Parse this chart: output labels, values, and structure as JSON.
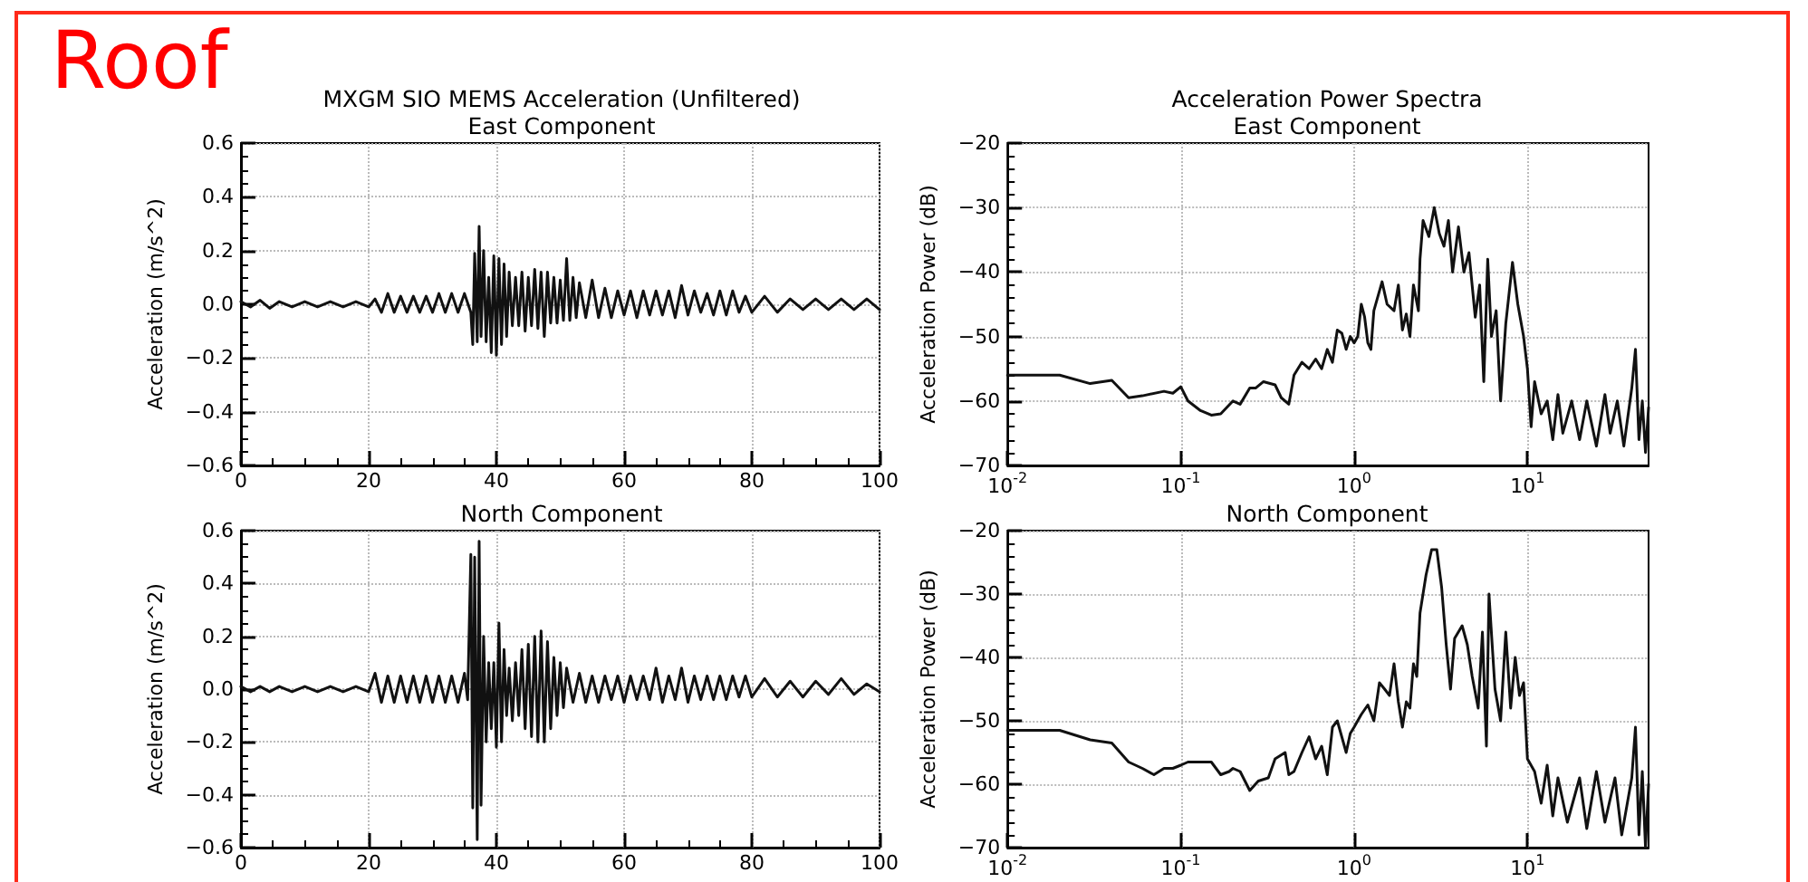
{
  "chart_data": [
    {
      "type": "line",
      "title": "MXGM SIO MEMS Acceleration (Unfiltered)",
      "subtitle": "East Component",
      "ylabel": "Acceleration (m/s^2)",
      "annotations": [
        "Roof"
      ],
      "grid": true,
      "line_style": "solid",
      "marker": "none",
      "x": [
        0,
        1.5,
        3,
        4.5,
        6,
        8,
        10,
        12,
        14,
        16,
        18,
        20,
        21,
        22,
        23,
        24,
        25,
        26,
        27,
        28,
        29,
        30,
        31,
        32,
        33,
        34,
        35,
        36,
        36.3,
        36.6,
        37,
        37.3,
        37.6,
        38,
        38.4,
        38.8,
        39.2,
        39.6,
        40,
        40.4,
        40.8,
        41.2,
        41.6,
        42,
        42.5,
        43,
        43.5,
        44,
        44.5,
        45,
        45.5,
        46,
        46.5,
        47,
        47.5,
        48,
        48.5,
        49,
        49.5,
        50,
        50.5,
        51,
        51.5,
        52,
        52.5,
        53,
        54,
        55,
        56,
        57,
        58,
        59,
        60,
        61,
        62,
        63,
        64,
        65,
        66,
        67,
        68,
        69,
        70,
        71,
        72,
        73,
        74,
        75,
        76,
        77,
        78,
        79,
        80,
        82,
        84,
        86,
        88,
        90,
        92,
        94,
        96,
        98,
        100
      ],
      "series": [
        {
          "color": "#111111",
          "values": [
            0.01,
            -0.01,
            0.015,
            -0.015,
            0.01,
            -0.01,
            0.01,
            -0.01,
            0.01,
            -0.01,
            0.01,
            -0.01,
            0.02,
            -0.03,
            0.04,
            -0.03,
            0.03,
            -0.03,
            0.03,
            -0.03,
            0.03,
            -0.03,
            0.04,
            -0.03,
            0.04,
            -0.03,
            0.04,
            -0.03,
            -0.15,
            0.19,
            -0.14,
            0.29,
            -0.12,
            0.2,
            -0.14,
            0.1,
            -0.18,
            0.18,
            -0.19,
            0.17,
            -0.15,
            0.15,
            -0.12,
            0.12,
            -0.08,
            0.1,
            -0.08,
            0.12,
            -0.1,
            0.1,
            -0.08,
            0.13,
            -0.09,
            0.12,
            -0.12,
            0.12,
            -0.07,
            0.1,
            -0.07,
            0.09,
            -0.06,
            0.17,
            -0.06,
            0.1,
            -0.05,
            0.08,
            -0.05,
            0.09,
            -0.05,
            0.06,
            -0.05,
            0.05,
            -0.04,
            0.05,
            -0.05,
            0.05,
            -0.04,
            0.05,
            -0.04,
            0.05,
            -0.05,
            0.07,
            -0.04,
            0.05,
            -0.03,
            0.04,
            -0.04,
            0.05,
            -0.04,
            0.05,
            -0.03,
            0.03,
            -0.03,
            0.03,
            -0.03,
            0.02,
            -0.02,
            0.02,
            -0.02,
            0.02,
            -0.02,
            0.02,
            -0.02
          ]
        }
      ],
      "xlim": [
        0,
        100
      ],
      "xticks": [
        0,
        20,
        40,
        60,
        80,
        100
      ],
      "ylim": [
        -0.6,
        0.6
      ],
      "yticks": [
        {
          "value": -0.6,
          "label": "−0.6"
        },
        {
          "value": -0.4,
          "label": "−0.4"
        },
        {
          "value": -0.2,
          "label": "−0.2"
        },
        {
          "value": 0,
          "label": "0.0"
        },
        {
          "value": 0.2,
          "label": "0.2"
        },
        {
          "value": 0.4,
          "label": "0.4"
        },
        {
          "value": 0.6,
          "label": "0.6"
        }
      ]
    },
    {
      "type": "line",
      "title": "Acceleration Power Spectra",
      "subtitle": "East Component",
      "ylabel": "Acceleration Power (dB)",
      "grid": true,
      "line_style": "solid",
      "marker": "none",
      "log": "x",
      "x": [
        0.01,
        0.02,
        0.03,
        0.04,
        0.05,
        0.06,
        0.08,
        0.09,
        0.1,
        0.11,
        0.13,
        0.15,
        0.17,
        0.2,
        0.22,
        0.25,
        0.27,
        0.3,
        0.35,
        0.38,
        0.42,
        0.45,
        0.5,
        0.55,
        0.6,
        0.65,
        0.7,
        0.75,
        0.8,
        0.85,
        0.9,
        0.95,
        1.0,
        1.05,
        1.1,
        1.15,
        1.2,
        1.25,
        1.3,
        1.45,
        1.55,
        1.7,
        1.8,
        1.9,
        2.0,
        2.1,
        2.2,
        2.35,
        2.4,
        2.5,
        2.7,
        2.9,
        3.1,
        3.3,
        3.5,
        3.7,
        4.0,
        4.3,
        4.6,
        5.0,
        5.3,
        5.6,
        5.9,
        6.2,
        6.6,
        7,
        7.5,
        8.2,
        8.8,
        9.5,
        10,
        10.5,
        11,
        12,
        13,
        14,
        15,
        16,
        18,
        20,
        22,
        25,
        28,
        30,
        33,
        36,
        40,
        42,
        44,
        46,
        48,
        50
      ],
      "series": [
        {
          "color": "#111111",
          "values": [
            -56,
            -56,
            -57.3,
            -56.8,
            -59.5,
            -59.2,
            -58.5,
            -58.8,
            -57.8,
            -60,
            -61.5,
            -62.2,
            -62,
            -60,
            -60.5,
            -58,
            -58,
            -57,
            -57.5,
            -59.5,
            -60.5,
            -56,
            -54,
            -55,
            -53.5,
            -55,
            -52,
            -54,
            -49,
            -49.5,
            -52,
            -50,
            -51,
            -50,
            -45,
            -47,
            -51,
            -52,
            -46,
            -41.5,
            -45,
            -46,
            -42,
            -49,
            -46.5,
            -50,
            -42,
            -46,
            -38,
            -32,
            -34.5,
            -30,
            -34,
            -36,
            -32,
            -40,
            -33,
            -40,
            -37,
            -47,
            -42,
            -57,
            -38,
            -50,
            -46,
            -60,
            -48,
            -38.5,
            -45,
            -50,
            -55,
            -64,
            -57,
            -62,
            -60,
            -66,
            -59,
            -65,
            -60,
            -66,
            -60,
            -67,
            -59,
            -65,
            -60,
            -67,
            -58,
            -52,
            -66,
            -60,
            -68,
            -61
          ]
        }
      ],
      "xlim": [
        0.01,
        50
      ],
      "xticks": [
        {
          "value": 0.01,
          "label": "10$^{-2}$"
        },
        {
          "value": 0.1,
          "label": "10$^{-1}$"
        },
        {
          "value": 1,
          "label": "10$^{0}$"
        },
        {
          "value": 10,
          "label": "10$^{1}$"
        }
      ],
      "ylim": [
        -70,
        -20
      ],
      "yticks": [
        {
          "value": -70,
          "label": "−70"
        },
        {
          "value": -60,
          "label": "−60"
        },
        {
          "value": -50,
          "label": "−50"
        },
        {
          "value": -40,
          "label": "−40"
        },
        {
          "value": -30,
          "label": "−30"
        },
        {
          "value": -20,
          "label": "−20"
        }
      ]
    },
    {
      "type": "line",
      "title": "North Component",
      "ylabel": "Acceleration (m/s^2)",
      "grid": true,
      "line_style": "solid",
      "marker": "none",
      "x": [
        0,
        1.5,
        3,
        4.5,
        6,
        8,
        10,
        12,
        14,
        16,
        18,
        20,
        21,
        22,
        23,
        24,
        25,
        26,
        27,
        28,
        29,
        30,
        31,
        32,
        33,
        34,
        35,
        35.5,
        36,
        36.3,
        36.6,
        37,
        37.3,
        37.6,
        38,
        38.4,
        38.8,
        39.2,
        39.6,
        40,
        40.4,
        40.8,
        41.2,
        41.6,
        42,
        42.5,
        43,
        43.5,
        44,
        44.5,
        45,
        45.5,
        46,
        46.5,
        47,
        47.5,
        48,
        48.5,
        49,
        49.5,
        50,
        50.5,
        51,
        52,
        53,
        54,
        55,
        56,
        57,
        58,
        59,
        60,
        61,
        62,
        63,
        64,
        65,
        66,
        67,
        68,
        69,
        70,
        71,
        72,
        73,
        74,
        75,
        76,
        77,
        78,
        79,
        80,
        82,
        84,
        86,
        88,
        90,
        92,
        94,
        96,
        98,
        100
      ],
      "series": [
        {
          "color": "#111111",
          "values": [
            0.01,
            -0.01,
            0.01,
            -0.01,
            0.01,
            -0.01,
            0.01,
            -0.01,
            0.01,
            -0.01,
            0.01,
            -0.01,
            0.06,
            -0.05,
            0.05,
            -0.05,
            0.05,
            -0.05,
            0.05,
            -0.05,
            0.05,
            -0.05,
            0.05,
            -0.05,
            0.05,
            -0.05,
            0.06,
            -0.04,
            0.51,
            -0.45,
            0.5,
            -0.57,
            0.56,
            -0.44,
            0.2,
            -0.2,
            0.1,
            -0.15,
            0.1,
            -0.22,
            0.25,
            -0.2,
            0.15,
            -0.1,
            0.08,
            -0.12,
            0.1,
            -0.1,
            0.15,
            -0.15,
            0.17,
            -0.18,
            0.2,
            -0.2,
            0.22,
            -0.2,
            0.18,
            -0.15,
            0.12,
            -0.1,
            0.1,
            -0.07,
            0.08,
            -0.05,
            0.06,
            -0.05,
            0.05,
            -0.05,
            0.05,
            -0.04,
            0.05,
            -0.05,
            0.05,
            -0.04,
            0.05,
            -0.04,
            0.08,
            -0.05,
            0.05,
            -0.04,
            0.08,
            -0.05,
            0.05,
            -0.04,
            0.05,
            -0.04,
            0.05,
            -0.04,
            0.05,
            -0.03,
            0.05,
            -0.03,
            0.04,
            -0.03,
            0.03,
            -0.03,
            0.03,
            -0.02,
            0.04,
            -0.02,
            0.02,
            -0.01
          ]
        }
      ],
      "xlim": [
        0,
        100
      ],
      "xticks": [
        0,
        20,
        40,
        60,
        80,
        100
      ],
      "ylim": [
        -0.6,
        0.6
      ],
      "yticks": [
        {
          "value": -0.6,
          "label": "−0.6"
        },
        {
          "value": -0.4,
          "label": "−0.4"
        },
        {
          "value": -0.2,
          "label": "−0.2"
        },
        {
          "value": 0,
          "label": "0.0"
        },
        {
          "value": 0.2,
          "label": "0.2"
        },
        {
          "value": 0.4,
          "label": "0.4"
        },
        {
          "value": 0.6,
          "label": "0.6"
        }
      ]
    },
    {
      "type": "line",
      "title": "North Component",
      "ylabel": "Acceleration Power (dB)",
      "grid": true,
      "line_style": "solid",
      "marker": "none",
      "log": "x",
      "x": [
        0.01,
        0.02,
        0.03,
        0.04,
        0.05,
        0.06,
        0.07,
        0.08,
        0.09,
        0.1,
        0.11,
        0.13,
        0.15,
        0.17,
        0.19,
        0.2,
        0.22,
        0.25,
        0.28,
        0.32,
        0.35,
        0.4,
        0.42,
        0.45,
        0.5,
        0.55,
        0.6,
        0.65,
        0.7,
        0.75,
        0.8,
        0.9,
        0.95,
        1.0,
        1.1,
        1.2,
        1.3,
        1.4,
        1.5,
        1.6,
        1.7,
        1.8,
        1.9,
        2.0,
        2.1,
        2.2,
        2.3,
        2.4,
        2.6,
        2.8,
        3.0,
        3.2,
        3.4,
        3.6,
        3.8,
        4.2,
        4.5,
        4.8,
        5.2,
        5.5,
        5.8,
        6.0,
        6.5,
        7,
        7.5,
        8,
        8.5,
        9,
        9.5,
        10,
        11,
        12,
        13,
        14,
        15,
        17,
        20,
        22,
        25,
        28,
        32,
        35,
        40,
        42,
        44,
        46,
        48,
        50
      ],
      "series": [
        {
          "color": "#111111",
          "values": [
            -51.5,
            -51.5,
            -53,
            -53.5,
            -56.5,
            -57.5,
            -58.5,
            -57.5,
            -57.5,
            -57,
            -56.5,
            -56.5,
            -56.5,
            -58.5,
            -58,
            -57.5,
            -58,
            -61,
            -59.5,
            -59,
            -56,
            -55,
            -58.5,
            -58,
            -55,
            -52.5,
            -56,
            -54,
            -58.5,
            -51,
            -50,
            -55,
            -52,
            -51,
            -49,
            -47.5,
            -50,
            -44,
            -45,
            -46,
            -41,
            -47,
            -51,
            -47,
            -48,
            -41,
            -43,
            -33,
            -27,
            -23,
            -23,
            -29,
            -38,
            -45,
            -37,
            -35,
            -38,
            -43,
            -48,
            -36,
            -54,
            -30,
            -45,
            -50,
            -36,
            -48,
            -40,
            -46,
            -44,
            -56,
            -58,
            -63,
            -57,
            -65,
            -59,
            -66,
            -59,
            -67,
            -58,
            -66,
            -59,
            -68,
            -59,
            -51,
            -68,
            -58,
            -70,
            -60
          ]
        }
      ],
      "xlim": [
        0.01,
        50
      ],
      "xticks": [
        {
          "value": 0.01,
          "label": "10$^{-2}$"
        },
        {
          "value": 0.1,
          "label": "10$^{-1}$"
        },
        {
          "value": 1,
          "label": "10$^{0}$"
        },
        {
          "value": 10,
          "label": "10$^{1}$"
        }
      ],
      "ylim": [
        -70,
        -20
      ],
      "yticks": [
        {
          "value": -70,
          "label": "−70"
        },
        {
          "value": -60,
          "label": "−60"
        },
        {
          "value": -50,
          "label": "−50"
        },
        {
          "value": -40,
          "label": "−40"
        },
        {
          "value": -30,
          "label": "−30"
        },
        {
          "value": -20,
          "label": "−20"
        }
      ]
    }
  ]
}
